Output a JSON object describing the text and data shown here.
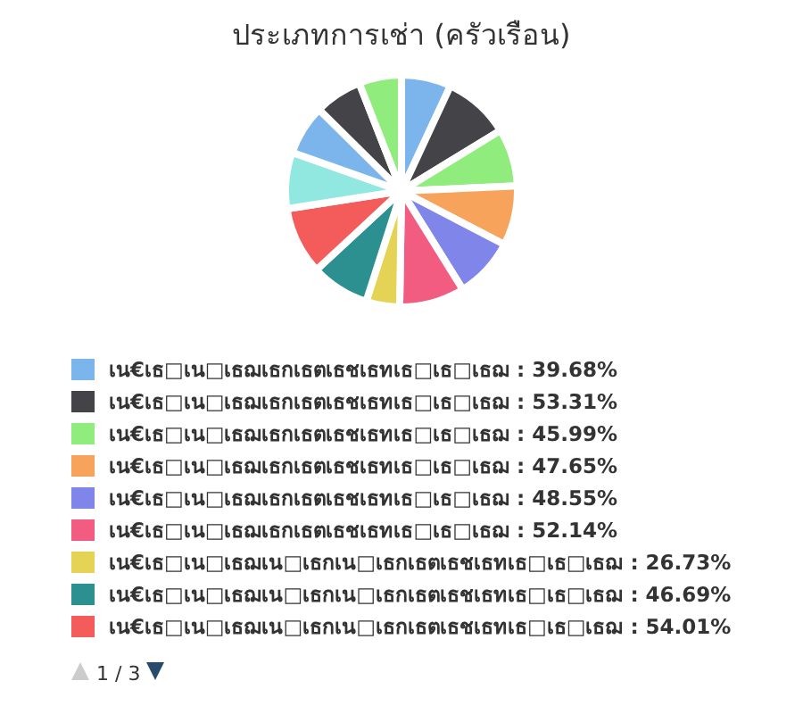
{
  "chart_data": {
    "type": "pie",
    "title": "ประเภทการเช่า (ครัวเรือน)",
    "categories": [
      "เน€เธ□เน□เธฌเธกเธตเธชเธทเธ□เธ□เธฌ",
      "เน€เธ□เน□เธฌเธกเธตเธชเธทเธ□เธ□เธฌ",
      "เน€เธ□เน□เธฌเธกเธตเธชเธทเธ□เธ□เธฌ",
      "เน€เธ□เน□เธฌเธกเธตเธชเธทเธ□เธ□เธฌ",
      "เน€เธ□เน□เธฌเธกเธตเธชเธทเธ□เธ□เธฌ",
      "เน€เธ□เน□เธฌเธกเธตเธชเธทเธ□เธ□เธฌ",
      "เน€เธ□เน□เธฌเน□เธกเน□เธกเธตเธชเธทเธ□เธ□เธฌ",
      "เน€เธ□เน□เธฌเน□เธกเน□เธกเธตเธชเธทเธ□เธ□เธฌ",
      "เน€เธ□เน□เธฌเน□เธกเน□เธกเธตเธชเธทเธ□เธ□เธฌ",
      null,
      null,
      null,
      null
    ],
    "values": [
      39.68,
      53.31,
      45.99,
      47.65,
      48.55,
      52.14,
      26.73,
      46.69,
      54.01,
      45,
      40,
      38,
      34
    ],
    "value_labels": [
      "39.68%",
      "53.31%",
      "45.99%",
      "47.65%",
      "48.55%",
      "52.14%",
      "26.73%",
      "46.69%",
      "54.01%",
      null,
      null,
      null,
      null
    ],
    "colors": [
      "#7cb5ec",
      "#434348",
      "#90ed7d",
      "#f7a35c",
      "#8085e9",
      "#f15c80",
      "#e4d354",
      "#2b908f",
      "#f45b5b",
      "#91e8e1",
      "#7cb5ec",
      "#434348",
      "#90ed7d"
    ],
    "legend": "bottom",
    "annotations": [
      "1 / 3"
    ]
  }
}
